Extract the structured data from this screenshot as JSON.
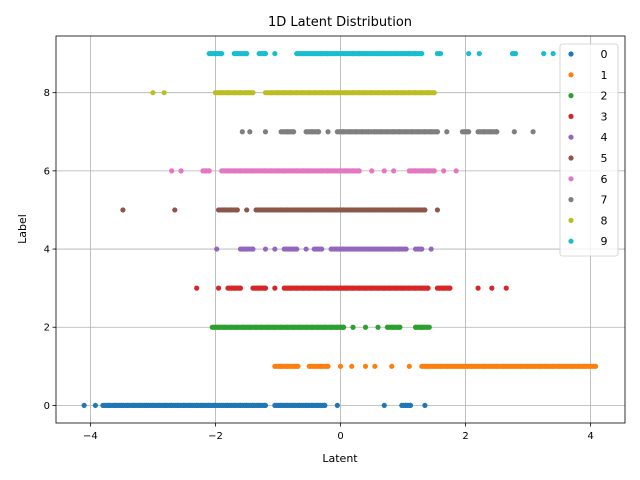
{
  "chart_data": {
    "type": "scatter",
    "title": "1D Latent Distribution",
    "xlabel": "Latent",
    "ylabel": "Label",
    "xlim": [
      -4.55,
      4.55
    ],
    "ylim": [
      -0.45,
      9.45
    ],
    "xticks": [
      -4,
      -2,
      0,
      2,
      4
    ],
    "yticks": [
      0,
      2,
      4,
      6,
      8
    ],
    "grid": true,
    "legend_position": "top-right",
    "series": [
      {
        "name": "0",
        "color": "#1f77b4",
        "y": 0,
        "x": [
          -4.1,
          -3.92,
          -3.8,
          -3.7,
          -3.6,
          -3.5,
          -3.4,
          -3.3,
          -3.2,
          -3.1,
          -3.0,
          -2.9,
          -2.8,
          -2.7,
          -2.6,
          -2.5,
          -2.4,
          -2.3,
          -2.2,
          -2.1,
          -2.0,
          -1.9,
          -1.8,
          -1.7,
          -1.6,
          -1.5,
          -1.4,
          -1.3,
          -1.2,
          -1.05,
          -0.95,
          -0.85,
          -0.75,
          -0.65,
          -0.55,
          -0.45,
          -0.35,
          -0.25,
          -0.05,
          0.7,
          0.98,
          1.05,
          1.12,
          1.35
        ]
      },
      {
        "name": "1",
        "color": "#ff7f0e",
        "y": 1,
        "x": [
          -1.05,
          -0.95,
          -0.85,
          -0.75,
          -0.68,
          -0.5,
          -0.4,
          -0.3,
          -0.2,
          0.0,
          0.18,
          0.4,
          0.55,
          0.82,
          1.1,
          1.3,
          1.4,
          1.5,
          1.6,
          1.7,
          1.8,
          1.9,
          2.0,
          2.1,
          2.2,
          2.3,
          2.4,
          2.5,
          2.6,
          2.7,
          2.8,
          2.9,
          3.0,
          3.1,
          3.2,
          3.3,
          3.4,
          3.5,
          3.6,
          3.7,
          3.8,
          3.9,
          4.02,
          4.08
        ]
      },
      {
        "name": "2",
        "color": "#2ca02c",
        "y": 2,
        "x": [
          -2.05,
          -1.95,
          -1.85,
          -1.75,
          -1.65,
          -1.55,
          -1.45,
          -1.35,
          -1.25,
          -1.15,
          -1.05,
          -0.95,
          -0.85,
          -0.75,
          -0.65,
          -0.55,
          -0.45,
          -0.35,
          -0.25,
          -0.15,
          -0.05,
          0.05,
          0.2,
          0.4,
          0.6,
          0.75,
          0.85,
          0.95,
          1.2,
          1.3,
          1.42
        ]
      },
      {
        "name": "3",
        "color": "#d62728",
        "y": 3,
        "x": [
          -2.3,
          -1.95,
          -1.8,
          -1.7,
          -1.6,
          -1.4,
          -1.3,
          -1.2,
          -1.05,
          -0.9,
          -0.8,
          -0.7,
          -0.6,
          -0.5,
          -0.4,
          -0.3,
          -0.2,
          -0.1,
          0.0,
          0.1,
          0.2,
          0.3,
          0.4,
          0.5,
          0.6,
          0.7,
          0.8,
          0.9,
          1.0,
          1.1,
          1.2,
          1.3,
          1.4,
          1.55,
          1.65,
          1.75,
          2.2,
          2.42,
          2.65
        ]
      },
      {
        "name": "4",
        "color": "#9467bd",
        "y": 4,
        "x": [
          -1.98,
          -1.6,
          -1.5,
          -1.4,
          -1.2,
          -1.05,
          -0.9,
          -0.8,
          -0.7,
          -0.55,
          -0.42,
          -0.3,
          -0.15,
          -0.05,
          0.05,
          0.15,
          0.25,
          0.35,
          0.45,
          0.55,
          0.65,
          0.75,
          0.85,
          0.95,
          1.05,
          1.2,
          1.3,
          1.45
        ]
      },
      {
        "name": "5",
        "color": "#8c564b",
        "y": 5,
        "x": [
          -3.48,
          -2.65,
          -1.95,
          -1.85,
          -1.75,
          -1.65,
          -1.5,
          -1.35,
          -1.25,
          -1.15,
          -1.05,
          -0.95,
          -0.85,
          -0.75,
          -0.65,
          -0.55,
          -0.45,
          -0.35,
          -0.25,
          -0.15,
          -0.05,
          0.05,
          0.15,
          0.25,
          0.35,
          0.45,
          0.55,
          0.65,
          0.75,
          0.85,
          0.95,
          1.05,
          1.15,
          1.25,
          1.35,
          1.55
        ]
      },
      {
        "name": "6",
        "color": "#e377c2",
        "y": 6,
        "x": [
          -2.7,
          -2.55,
          -2.2,
          -2.1,
          -1.9,
          -1.8,
          -1.7,
          -1.6,
          -1.5,
          -1.4,
          -1.3,
          -1.2,
          -1.1,
          -1.0,
          -0.9,
          -0.8,
          -0.7,
          -0.6,
          -0.5,
          -0.4,
          -0.3,
          -0.2,
          -0.1,
          0.0,
          0.1,
          0.2,
          0.3,
          0.5,
          0.7,
          0.85,
          1.1,
          1.2,
          1.3,
          1.4,
          1.5,
          1.65,
          1.85
        ]
      },
      {
        "name": "7",
        "color": "#7f7f7f",
        "y": 7,
        "x": [
          -1.57,
          -1.45,
          -1.2,
          -0.95,
          -0.85,
          -0.75,
          -0.55,
          -0.45,
          -0.35,
          -0.2,
          -0.05,
          0.05,
          0.15,
          0.25,
          0.35,
          0.45,
          0.55,
          0.65,
          0.75,
          0.85,
          0.95,
          1.05,
          1.15,
          1.25,
          1.35,
          1.45,
          1.55,
          1.7,
          1.95,
          2.05,
          2.2,
          2.3,
          2.4,
          2.5,
          2.78,
          3.08
        ]
      },
      {
        "name": "8",
        "color": "#bcbd22",
        "y": 8,
        "x": [
          -3.0,
          -2.82,
          -2.0,
          -1.9,
          -1.8,
          -1.7,
          -1.6,
          -1.5,
          -1.4,
          -1.2,
          -1.1,
          -1.0,
          -0.9,
          -0.8,
          -0.7,
          -0.6,
          -0.5,
          -0.4,
          -0.3,
          -0.2,
          -0.1,
          0.0,
          0.1,
          0.2,
          0.3,
          0.4,
          0.5,
          0.6,
          0.7,
          0.8,
          0.9,
          1.0,
          1.1,
          1.2,
          1.3,
          1.4,
          1.5
        ]
      },
      {
        "name": "9",
        "color": "#17becf",
        "y": 9,
        "x": [
          -2.1,
          -2.0,
          -1.9,
          -1.7,
          -1.6,
          -1.5,
          -1.3,
          -1.2,
          -1.05,
          -0.7,
          -0.6,
          -0.5,
          -0.4,
          -0.3,
          -0.2,
          -0.1,
          0.0,
          0.1,
          0.2,
          0.3,
          0.4,
          0.5,
          0.6,
          0.7,
          0.8,
          0.9,
          1.0,
          1.1,
          1.2,
          1.3,
          1.55,
          1.6,
          2.05,
          2.22,
          2.75,
          2.8,
          3.25,
          3.4
        ]
      }
    ]
  }
}
